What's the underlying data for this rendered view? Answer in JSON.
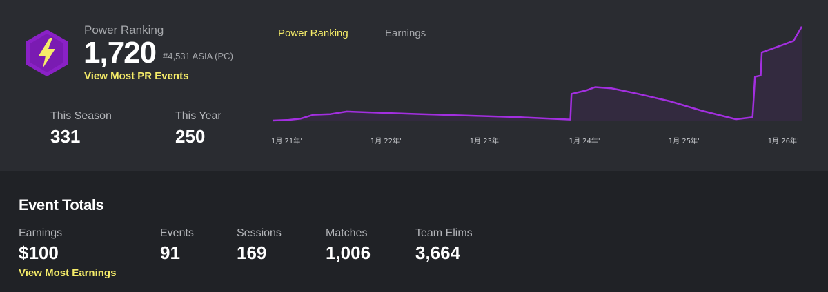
{
  "power_ranking": {
    "label": "Power Ranking",
    "value": "1,720",
    "rank": "#4,531 ASIA (PC)",
    "link": "View Most PR Events",
    "badge_icon": "lightning-bolt-icon",
    "badge_color": "#8a21c6",
    "bolt_color": "#f5ec69"
  },
  "stats": {
    "season_label": "This Season",
    "season_value": "331",
    "year_label": "This Year",
    "year_value": "250"
  },
  "tabs": [
    {
      "label": "Power Ranking",
      "active": true
    },
    {
      "label": "Earnings",
      "active": false
    }
  ],
  "chart_data": {
    "type": "area",
    "x_ticks": [
      "1月 21年'",
      "1月 22年'",
      "1月 23年'",
      "1月 24年'",
      "1月 25年'",
      "1月 26年'"
    ],
    "line_color": "#a32fe0",
    "fill_color": "#3a2a4a",
    "series": [
      {
        "points": [
          [
            "2021-01-01",
            0
          ],
          [
            "2021-03-01",
            10
          ],
          [
            "2021-04-15",
            30
          ],
          [
            "2021-06-01",
            90
          ],
          [
            "2021-08-01",
            100
          ],
          [
            "2021-10-01",
            140
          ],
          [
            "2022-01-01",
            125
          ],
          [
            "2022-07-01",
            100
          ],
          [
            "2023-01-01",
            75
          ],
          [
            "2023-07-01",
            50
          ],
          [
            "2024-01-01",
            15
          ],
          [
            "2024-01-05",
            415
          ],
          [
            "2024-03-01",
            470
          ],
          [
            "2024-04-01",
            520
          ],
          [
            "2024-06-01",
            500
          ],
          [
            "2024-09-01",
            420
          ],
          [
            "2025-01-01",
            300
          ],
          [
            "2025-05-01",
            150
          ],
          [
            "2025-09-01",
            20
          ],
          [
            "2025-11-01",
            50
          ],
          [
            "2025-11-10",
            680
          ],
          [
            "2025-12-01",
            700
          ],
          [
            "2025-12-05",
            1060
          ],
          [
            "2026-01-01",
            1100
          ],
          [
            "2026-03-01",
            1190
          ],
          [
            "2026-04-01",
            1240
          ],
          [
            "2026-05-01",
            1460
          ]
        ]
      }
    ]
  },
  "event_totals": {
    "title": "Event Totals",
    "items": [
      {
        "label": "Earnings",
        "value": "$100"
      },
      {
        "label": "Events",
        "value": "91"
      },
      {
        "label": "Sessions",
        "value": "169"
      },
      {
        "label": "Matches",
        "value": "1,006"
      },
      {
        "label": "Team Elims",
        "value": "3,664"
      }
    ],
    "earnings_link": "View Most Earnings"
  }
}
